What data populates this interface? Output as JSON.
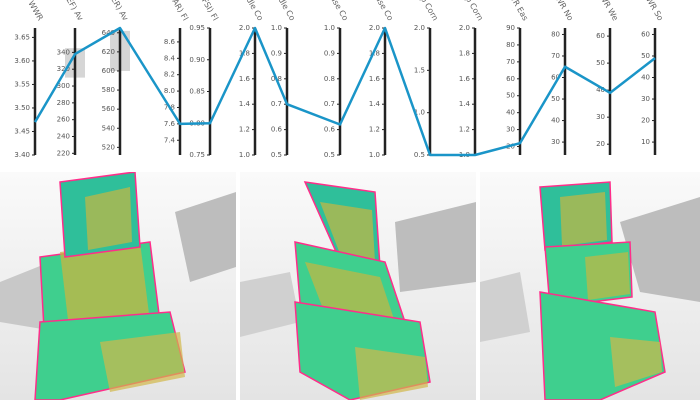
{
  "chart_data": {
    "type": "parallel",
    "axes": [
      {
        "label": "WWR",
        "lim": [
          3.4,
          3.67
        ],
        "ticks": [
          {
            "value": 3.4,
            "label": "3.40"
          },
          {
            "value": 3.45,
            "label": "3.45"
          },
          {
            "value": 3.5,
            "label": "3.50"
          },
          {
            "value": 3.55,
            "label": "3.55"
          },
          {
            "value": 3.6,
            "label": "3.60"
          },
          {
            "value": 3.65,
            "label": "3.65"
          }
        ]
      },
      {
        "label": "(AEF) Av",
        "lim": [
          218,
          369
        ],
        "ticks": [
          220,
          240,
          260,
          280,
          300,
          320,
          340
        ],
        "brush": [
          310,
          345
        ]
      },
      {
        "label": "(AER) Av",
        "lim": [
          512,
          645
        ],
        "ticks": [
          520,
          540,
          560,
          580,
          600,
          620,
          640
        ],
        "brush": [
          600,
          642
        ]
      },
      {
        "label": "(FAR) Fl",
        "lim": [
          7.22,
          8.77
        ],
        "ticks": [
          7.4,
          7.6,
          7.8,
          {
            "value": 8,
            "label": "8.0"
          },
          8.2,
          8.4,
          8.6
        ]
      },
      {
        "label": "(FSI) Fl",
        "lim": [
          0.75,
          0.95
        ],
        "ticks": [
          0.75,
          {
            "value": 0.8,
            "label": "0.80"
          },
          0.85,
          {
            "value": 0.9,
            "label": "0.90"
          },
          0.95
        ]
      },
      {
        "label": "Middle Co",
        "lim": [
          1,
          2
        ],
        "ticks": [
          {
            "value": 1,
            "label": "1.0"
          },
          1.2,
          1.4,
          1.6,
          1.8,
          {
            "value": 2,
            "label": "2.0"
          }
        ]
      },
      {
        "label": "Middle Co",
        "lim": [
          0.5,
          1
        ],
        "ticks": [
          0.5,
          0.6,
          0.7,
          0.8,
          0.9,
          {
            "value": 1,
            "label": "1.0"
          }
        ]
      },
      {
        "label": "Base Co",
        "lim": [
          0.5,
          1
        ],
        "ticks": [
          0.5,
          0.6,
          0.7,
          0.8,
          0.9,
          {
            "value": 1,
            "label": "1.0"
          }
        ]
      },
      {
        "label": "Base Co",
        "lim": [
          1,
          2
        ],
        "ticks": [
          {
            "value": 1,
            "label": "1.0"
          },
          1.2,
          1.4,
          1.6,
          1.8,
          {
            "value": 2,
            "label": "2.0"
          }
        ]
      },
      {
        "label": "Top Corn",
        "lim": [
          0.5,
          2
        ],
        "ticks": [
          0.5,
          {
            "value": 1,
            "label": "1.0"
          },
          1.5,
          {
            "value": 2,
            "label": "2.0"
          }
        ]
      },
      {
        "label": "Top Corn",
        "lim": [
          1,
          2
        ],
        "ticks": [
          {
            "value": 1,
            "label": "1.0"
          },
          1.2,
          1.4,
          1.6,
          1.8,
          {
            "value": 2,
            "label": "2.0"
          }
        ]
      },
      {
        "label": "WWR Eas",
        "lim": [
          15,
          90
        ],
        "ticks": [
          20,
          30,
          40,
          50,
          60,
          70,
          80,
          90
        ]
      },
      {
        "label": "WWR No",
        "lim": [
          24,
          83
        ],
        "ticks": [
          30,
          40,
          50,
          60,
          70,
          80
        ]
      },
      {
        "label": "WWR We",
        "lim": [
          16,
          63
        ],
        "ticks": [
          20,
          30,
          40,
          50,
          60
        ]
      },
      {
        "label": "WWR So",
        "lim": [
          4,
          63
        ],
        "ticks": [
          10,
          20,
          30,
          40,
          50,
          60
        ]
      }
    ],
    "series": [
      {
        "color": "#1a95c8",
        "values": [
          3.47,
          338,
          645,
          7.6,
          0.8,
          2,
          0.7,
          0.62,
          2,
          0.5,
          1,
          22,
          65,
          39,
          49
        ]
      }
    ]
  }
}
